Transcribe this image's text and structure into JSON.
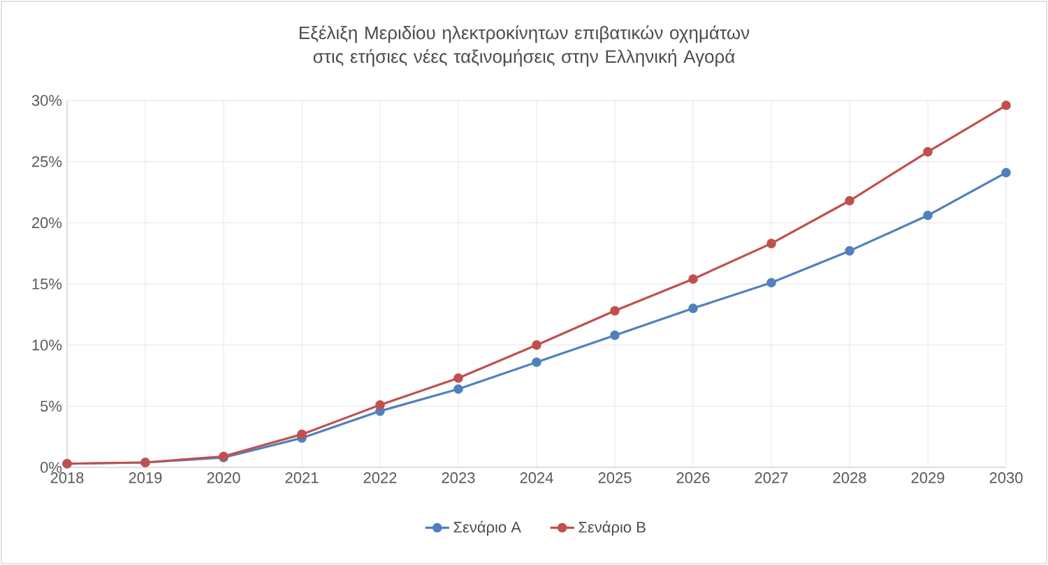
{
  "chart_data": {
    "type": "line",
    "title": "Εξέλιξη Μεριδίου ηλεκτροκίνητων επιβατικών οχημάτων στις ετήσιες νέες ταξινομήσεις στην Ελληνική Αγορά",
    "x": [
      2018,
      2019,
      2020,
      2021,
      2022,
      2023,
      2024,
      2025,
      2026,
      2027,
      2028,
      2029,
      2030
    ],
    "series": [
      {
        "name": "Σενάριο Α",
        "color": "#4f81bd",
        "values": [
          0.3,
          0.4,
          0.8,
          2.4,
          4.6,
          6.4,
          8.6,
          10.8,
          13.0,
          15.1,
          17.7,
          20.6,
          24.1
        ]
      },
      {
        "name": "Σενάριο Β",
        "color": "#c0504d",
        "values": [
          0.3,
          0.4,
          0.9,
          2.7,
          5.1,
          7.3,
          10.0,
          12.8,
          15.4,
          18.3,
          21.8,
          25.8,
          29.6
        ]
      }
    ],
    "xlim": [
      2018,
      2030
    ],
    "xticks": [
      2018,
      2019,
      2020,
      2021,
      2022,
      2023,
      2024,
      2025,
      2026,
      2027,
      2028,
      2029,
      2030
    ],
    "ylim": [
      0,
      30
    ],
    "yticks": [
      {
        "value": 0,
        "label": "0%"
      },
      {
        "value": 5,
        "label": "5%"
      },
      {
        "value": 10,
        "label": "10%"
      },
      {
        "value": 15,
        "label": "15%"
      },
      {
        "value": 20,
        "label": "20%"
      },
      {
        "value": 25,
        "label": "25%"
      },
      {
        "value": 30,
        "label": "30%"
      }
    ],
    "grid": true,
    "legend": "bottom",
    "marker": "circle",
    "line_style": "solid"
  }
}
